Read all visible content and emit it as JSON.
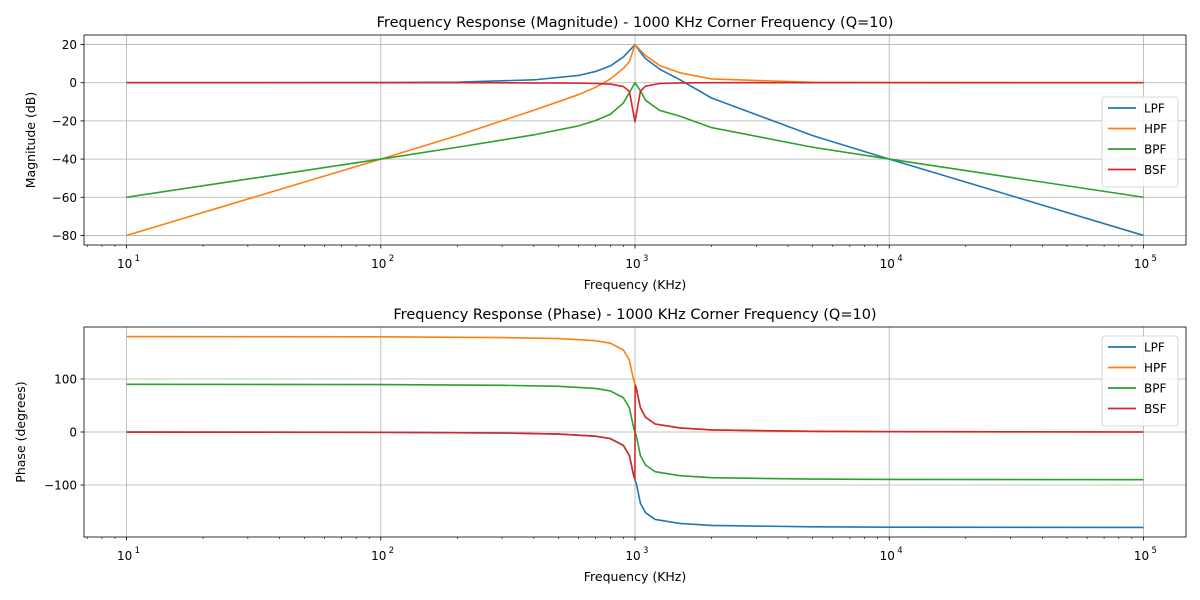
{
  "chart_data": [
    {
      "type": "line",
      "title": "Frequency Response (Magnitude) - 1000 KHz Corner Frequency (Q=10)",
      "xlabel": "Frequency (KHz)",
      "ylabel": "Magnitude (dB)",
      "xscale": "log",
      "xlim": [
        6.8,
        147000
      ],
      "ylim": [
        -85,
        25
      ],
      "xticks": [
        10,
        100,
        1000,
        10000,
        100000
      ],
      "xtick_labels": [
        [
          "10",
          "1"
        ],
        [
          "10",
          "2"
        ],
        [
          "10",
          "3"
        ],
        [
          "10",
          "4"
        ],
        [
          "10",
          "5"
        ]
      ],
      "yticks": [
        20,
        0,
        -20,
        -40,
        -60,
        -80
      ],
      "ytick_labels": [
        "20",
        "0",
        "−20",
        "−40",
        "−60",
        "−80"
      ],
      "grid": true,
      "legend_position": "right",
      "x": [
        10,
        100,
        200,
        400,
        600,
        700,
        800,
        900,
        950,
        1000,
        1050,
        1100,
        1250,
        1500,
        2000,
        5000,
        10000,
        100000
      ],
      "series": [
        {
          "name": "LPF",
          "color": "#1f77b4",
          "values": [
            0,
            0.1,
            0.3,
            1.5,
            3.8,
            5.9,
            8.8,
            13.5,
            16.8,
            20,
            16.0,
            12.6,
            7.1,
            1.6,
            -8.0,
            -27.7,
            -40,
            -80
          ]
        },
        {
          "name": "HPF",
          "color": "#ff7f0e",
          "values": [
            -80,
            -40,
            -27.7,
            -14.4,
            -6.2,
            -2.4,
            2.0,
            7.5,
            11.0,
            20,
            16.9,
            14.3,
            9.0,
            5.2,
            2.0,
            0.2,
            0.1,
            0
          ]
        },
        {
          "name": "BPF",
          "color": "#2ca02c",
          "values": [
            -60,
            -40,
            -33.8,
            -27.3,
            -22.6,
            -19.8,
            -16.5,
            -10.6,
            -5.2,
            0,
            -4.2,
            -9.2,
            -14.5,
            -17.5,
            -23.5,
            -33.8,
            -40,
            -60
          ]
        },
        {
          "name": "BSF",
          "color": "#d62728",
          "values": [
            0,
            0,
            0,
            -0.1,
            -0.2,
            -0.4,
            -0.7,
            -2.0,
            -4.5,
            -20.5,
            -4.4,
            -1.8,
            -0.4,
            -0.1,
            0,
            0,
            0,
            0
          ]
        }
      ]
    },
    {
      "type": "line",
      "title": "Frequency Response (Phase) - 1000 KHz Corner Frequency (Q=10)",
      "xlabel": "Frequency (KHz)",
      "ylabel": "Phase (degrees)",
      "xscale": "log",
      "xlim": [
        6.8,
        147000
      ],
      "ylim": [
        -198,
        198
      ],
      "xticks": [
        10,
        100,
        1000,
        10000,
        100000
      ],
      "xtick_labels": [
        [
          "10",
          "1"
        ],
        [
          "10",
          "2"
        ],
        [
          "10",
          "3"
        ],
        [
          "10",
          "4"
        ],
        [
          "10",
          "5"
        ]
      ],
      "yticks": [
        100,
        0,
        -100
      ],
      "ytick_labels": [
        "100",
        "0",
        "−100"
      ],
      "grid": true,
      "legend_position": "top-right",
      "x": [
        10,
        100,
        300,
        500,
        700,
        800,
        900,
        950,
        990,
        999,
        1000,
        1001,
        1010,
        1050,
        1100,
        1200,
        1500,
        2000,
        5000,
        10000,
        100000
      ],
      "series": [
        {
          "name": "LPF",
          "color": "#1f77b4",
          "values": [
            -0.1,
            -0.6,
            -1.9,
            -3.8,
            -7.9,
            -12.5,
            -25.4,
            -44.3,
            -84.3,
            -88.4,
            -90,
            -91.6,
            -95.7,
            -134.3,
            -152.2,
            -164.9,
            -172.4,
            -176.2,
            -178.8,
            -179.4,
            -180
          ]
        },
        {
          "name": "HPF",
          "color": "#ff7f0e",
          "values": [
            179.9,
            179.4,
            178.1,
            176.2,
            172.1,
            167.5,
            154.6,
            135.7,
            95.7,
            91.6,
            90,
            88.4,
            84.3,
            45.7,
            27.8,
            15.1,
            7.6,
            3.8,
            1.2,
            0.6,
            0
          ]
        },
        {
          "name": "BPF",
          "color": "#2ca02c",
          "values": [
            89.9,
            89.4,
            88.1,
            86.2,
            82.1,
            77.5,
            64.6,
            45.7,
            5.7,
            1.6,
            0,
            -1.6,
            -5.7,
            -44.3,
            -62.2,
            -74.9,
            -82.4,
            -86.2,
            -88.8,
            -89.4,
            -90
          ]
        },
        {
          "name": "BSF",
          "color": "#d62728",
          "values": [
            -0.1,
            -0.6,
            -1.9,
            -3.8,
            -7.9,
            -12.5,
            -25.4,
            -44.3,
            -84.3,
            -88.4,
            0,
            88.4,
            84.3,
            45.7,
            27.8,
            15.1,
            7.6,
            3.8,
            1.2,
            0.6,
            0
          ]
        }
      ]
    }
  ]
}
